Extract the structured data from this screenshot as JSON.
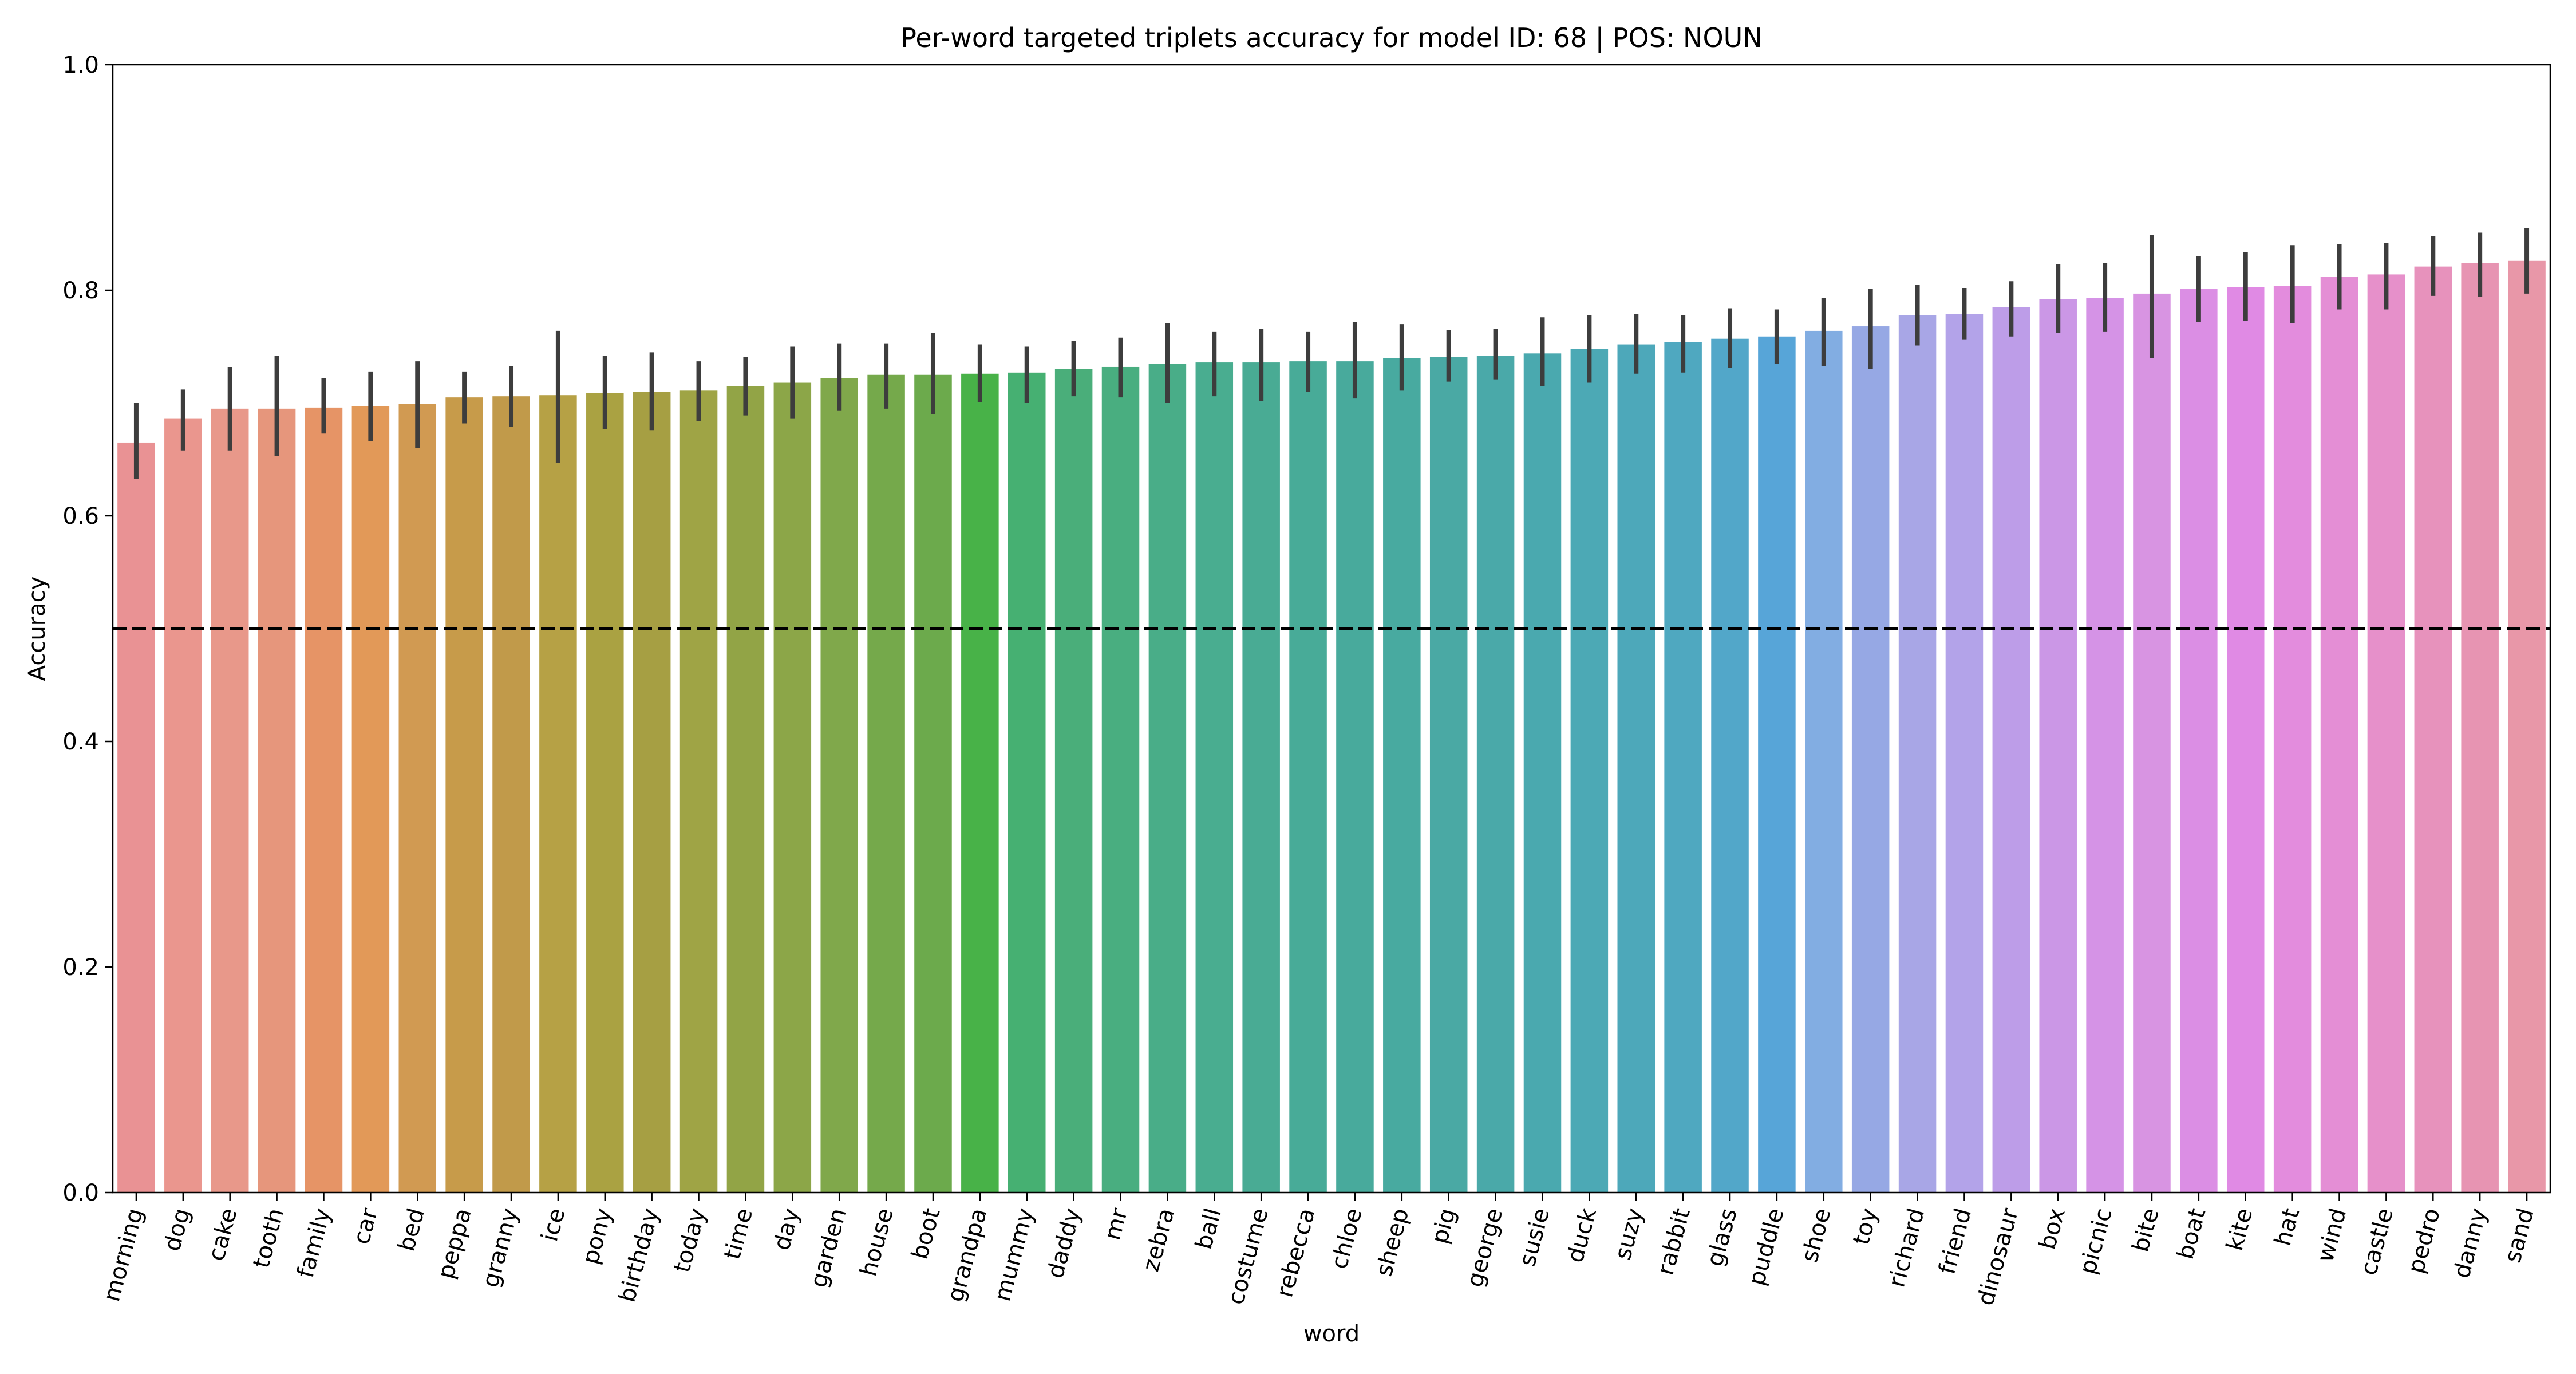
{
  "chart_data": {
    "type": "bar",
    "title": "Per-word targeted triplets accuracy for model ID: 68 | POS: NOUN",
    "xlabel": "word",
    "ylabel": "Accuracy",
    "ylim": [
      0,
      1.0
    ],
    "yticks": [
      "0.0",
      "0.2",
      "0.4",
      "0.6",
      "0.8",
      "1.0"
    ],
    "yticks_values": [
      0,
      0.2,
      0.4,
      0.6,
      0.8,
      1.0
    ],
    "grid": false,
    "legend": "none",
    "reference_line": {
      "y": 0.5,
      "style": "dashed",
      "color": "#000000"
    },
    "categories": [
      "morning",
      "dog",
      "cake",
      "tooth",
      "family",
      "car",
      "bed",
      "peppa",
      "granny",
      "ice",
      "pony",
      "birthday",
      "today",
      "time",
      "day",
      "garden",
      "house",
      "boot",
      "grandpa",
      "mummy",
      "daddy",
      "mr",
      "zebra",
      "ball",
      "costume",
      "rebecca",
      "chloe",
      "sheep",
      "pig",
      "george",
      "susie",
      "duck",
      "suzy",
      "rabbit",
      "glass",
      "puddle",
      "shoe",
      "toy",
      "richard",
      "friend",
      "dinosaur",
      "box",
      "picnic",
      "bite",
      "boat",
      "kite",
      "hat",
      "wind",
      "castle",
      "pedro",
      "danny",
      "sand"
    ],
    "values": [
      0.665,
      0.686,
      0.695,
      0.695,
      0.696,
      0.697,
      0.699,
      0.705,
      0.706,
      0.707,
      0.709,
      0.71,
      0.711,
      0.715,
      0.718,
      0.722,
      0.725,
      0.725,
      0.726,
      0.727,
      0.73,
      0.732,
      0.735,
      0.736,
      0.736,
      0.737,
      0.737,
      0.74,
      0.741,
      0.742,
      0.744,
      0.748,
      0.752,
      0.754,
      0.757,
      0.759,
      0.764,
      0.768,
      0.778,
      0.779,
      0.785,
      0.792,
      0.793,
      0.797,
      0.801,
      0.803,
      0.804,
      0.812,
      0.814,
      0.821,
      0.824,
      0.826
    ],
    "err_low": [
      0.633,
      0.658,
      0.658,
      0.653,
      0.673,
      0.666,
      0.66,
      0.682,
      0.679,
      0.647,
      0.677,
      0.676,
      0.684,
      0.689,
      0.686,
      0.693,
      0.695,
      0.69,
      0.701,
      0.7,
      0.706,
      0.705,
      0.7,
      0.706,
      0.702,
      0.71,
      0.704,
      0.711,
      0.719,
      0.721,
      0.715,
      0.718,
      0.726,
      0.727,
      0.731,
      0.735,
      0.733,
      0.73,
      0.751,
      0.756,
      0.759,
      0.762,
      0.763,
      0.74,
      0.772,
      0.773,
      0.771,
      0.783,
      0.783,
      0.795,
      0.794,
      0.797
    ],
    "err_high": [
      0.7,
      0.712,
      0.732,
      0.742,
      0.722,
      0.728,
      0.737,
      0.728,
      0.733,
      0.764,
      0.742,
      0.745,
      0.737,
      0.741,
      0.75,
      0.753,
      0.753,
      0.762,
      0.752,
      0.75,
      0.755,
      0.758,
      0.771,
      0.763,
      0.766,
      0.763,
      0.772,
      0.77,
      0.765,
      0.766,
      0.776,
      0.778,
      0.779,
      0.778,
      0.784,
      0.783,
      0.793,
      0.801,
      0.805,
      0.802,
      0.808,
      0.823,
      0.824,
      0.849,
      0.83,
      0.834,
      0.84,
      0.841,
      0.842,
      0.848,
      0.851,
      0.855
    ],
    "colors": [
      "#E99294",
      "#EA968E",
      "#E8988A",
      "#E6967C",
      "#E69466",
      "#E29958",
      "#D19A52",
      "#C79B4A",
      "#C19A4A",
      "#B6A145",
      "#AAA242",
      "#A69F43",
      "#9FA445",
      "#92A446",
      "#8CA648",
      "#80A84B",
      "#75A94B",
      "#6CAA4C",
      "#48B248",
      "#46B072",
      "#4AAE7A",
      "#49AE80",
      "#49AD88",
      "#49AD90",
      "#49AB94",
      "#48AB98",
      "#48AA9C",
      "#48AAA0",
      "#4AA9A4",
      "#4AA9A9",
      "#4AA9AF",
      "#4CA9B5",
      "#4DA8BA",
      "#4FA8C0",
      "#52A7C9",
      "#57A5D8",
      "#82ADE2",
      "#96A8E4",
      "#A8A6E6",
      "#B3A3E9",
      "#BD9DE8",
      "#CB97E6",
      "#D593E6",
      "#D894E2",
      "#DB8EE4",
      "#E08AE4",
      "#E38CDD",
      "#E48ED5",
      "#E690CA",
      "#E792BC",
      "#E794B2",
      "#E897A8"
    ]
  }
}
